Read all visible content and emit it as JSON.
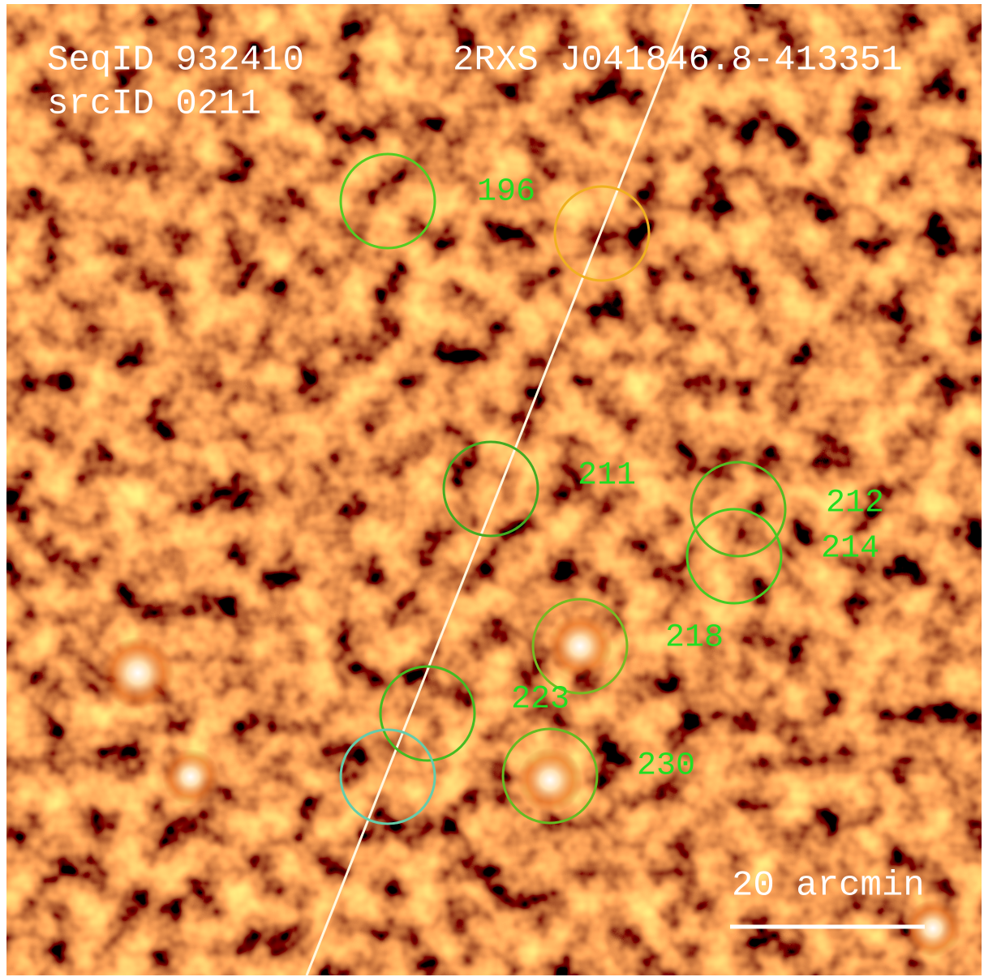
{
  "header": {
    "seq_id": "SeqID 932410",
    "src_id": "srcID 0211",
    "source_name": "2RXS J041846.8-413351"
  },
  "sources": [
    {
      "label": "196"
    },
    {
      "label": "211"
    },
    {
      "label": "212"
    },
    {
      "label": "214"
    },
    {
      "label": "218"
    },
    {
      "label": "223"
    },
    {
      "label": "230"
    }
  ],
  "scale_bar": {
    "label": "20 arcmin"
  }
}
